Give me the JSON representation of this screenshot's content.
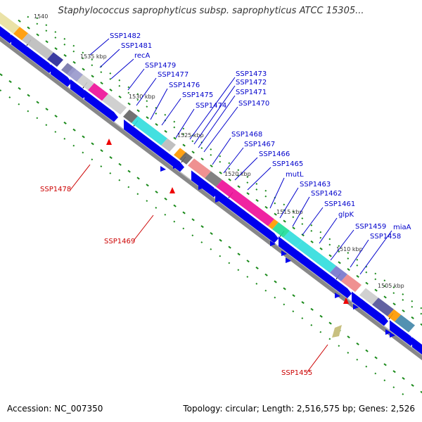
{
  "title": "Staphylococcus saprophyticus subsp. saprophyticus ATCC 15305...",
  "footer": {
    "accession": "Accession: NC_007350",
    "topology": "Topology: circular; Length: 2,516,575 bp; Genes: 2,526"
  },
  "colors": {
    "gene_label": "#0000cc",
    "rna_label": "#cc0000",
    "forward_strand": "#0000ee",
    "backbone": "#888888",
    "gc_dots": "#1a8a1a",
    "kbp_text": "#333333"
  },
  "kbp_labels": [
    "1540",
    "1535 kbp",
    "1530 kbp",
    "1525 kbp",
    "1520 kbp",
    "1515 kbp",
    "1510 kbp",
    "1505 kbp"
  ],
  "gene_labels": [
    "SSP1482",
    "SSP1481",
    "recA",
    "SSP1479",
    "SSP1477",
    "SSP1476",
    "SSP1475",
    "SSP1474",
    "SSP1473",
    "SSP1472",
    "SSP1471",
    "SSP1470",
    "SSP1468",
    "SSP1467",
    "SSP1466",
    "SSP1465",
    "mutL",
    "SSP1463",
    "SSP1462",
    "SSP1461",
    "glpK",
    "SSP1459",
    "miaA",
    "SSP1458"
  ],
  "rna_labels": [
    "SSP1478",
    "SSP1469",
    "SSP1455"
  ]
}
